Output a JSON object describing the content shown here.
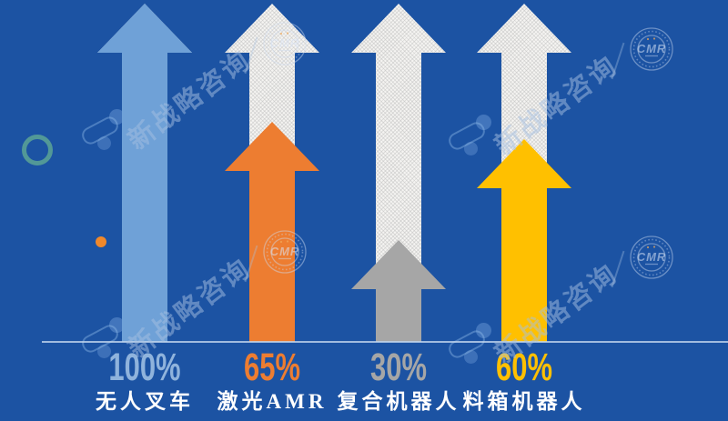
{
  "page": {
    "background_color": "#1C53A3",
    "baseline_color": "#C3D7EE"
  },
  "watermark": {
    "text": "新战略咨询",
    "stamp_text": "CMR"
  },
  "chart_data": {
    "type": "bar",
    "variant": "upward arrow bars over full-height hatched track arrows",
    "title": "",
    "xlabel": "",
    "ylabel": "",
    "unit": "%",
    "ylim": [
      0,
      100
    ],
    "grid": false,
    "legend_position": "none",
    "categories": [
      "无人叉车",
      "激光AMR",
      "复合机器人",
      "料箱机器人"
    ],
    "values": [
      100,
      65,
      30,
      60
    ],
    "value_labels": [
      "100%",
      "65%",
      "30%",
      "60%"
    ],
    "series_colors": [
      "#6FA1D7",
      "#ED7D31",
      "#A6A6A6",
      "#FFC000"
    ],
    "value_label_colors": [
      "#8FB3DC",
      "#ED7D31",
      "#A6A6A6",
      "#FFC000"
    ],
    "track_color": "#F5F4F2"
  }
}
